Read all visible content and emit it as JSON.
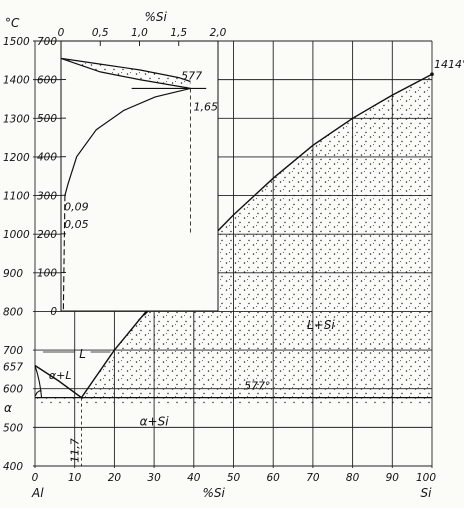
{
  "diagram": {
    "main": {
      "y_unit": "°C",
      "y_ticks": [
        "1500",
        "1400",
        "1300",
        "1200",
        "1100",
        "1000",
        "900",
        "800",
        "700",
        "600",
        "500",
        "400"
      ],
      "y_values": [
        1500,
        1400,
        1300,
        1200,
        1100,
        1000,
        900,
        800,
        700,
        600,
        500,
        400
      ],
      "y_extra_ticks": [
        {
          "label": "657",
          "value": 657
        }
      ],
      "x_ticks": [
        "0",
        "10",
        "20",
        "30",
        "40",
        "50",
        "60",
        "70",
        "80",
        "90",
        "100"
      ],
      "x_label": "%Si",
      "left_element": "Al",
      "right_element": "Si",
      "si_melting_label": "1414°",
      "phase_labels": {
        "liquid": "L",
        "alpha_liquid": "α+L",
        "alpha": "α",
        "alpha_si": "α+Si",
        "liquid_si": "L+Si"
      },
      "eutectic_temp_label": "577°",
      "eutectic_comp_label": "11,7"
    },
    "inset": {
      "y_ticks": [
        "700",
        "600",
        "500",
        "400",
        "300",
        "200",
        "100",
        "0"
      ],
      "x_ticks": [
        "0",
        "0,5",
        "1,0",
        "1,5",
        "2,0"
      ],
      "x_label": "%Si",
      "eutectic_temp_label": "577",
      "solubility_label": "1,65",
      "low_solubility_labels": [
        "0,09",
        "0,05"
      ]
    }
  }
}
